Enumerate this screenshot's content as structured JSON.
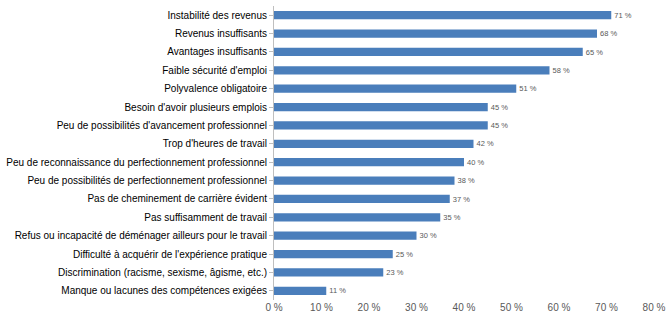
{
  "chart_data": {
    "type": "bar",
    "orientation": "horizontal",
    "categories": [
      "Instabilité des revenus",
      "Revenus insuffisants",
      "Avantages insuffisants",
      "Faible sécurité d'emploi",
      "Polyvalence obligatoire",
      "Besoin d'avoir plusieurs emplois",
      "Peu de possibilités d'avancement professionnel",
      "Trop d'heures de travail",
      "Peu de reconnaissance du perfectionnement professionnel",
      "Peu de possibilités de perfectionnement professionnel",
      "Pas de cheminement de carrière évident",
      "Pas suffisamment de travail",
      "Refus ou incapacité de déménager ailleurs pour le travail",
      "Difficulté à acquérir de l'expérience pratique",
      "Discrimination (racisme, sexisme, âgisme, etc.)",
      "Manque ou lacunes des compétences exigées"
    ],
    "values": [
      71,
      68,
      65,
      58,
      51,
      45,
      45,
      42,
      40,
      38,
      37,
      35,
      30,
      25,
      23,
      11
    ],
    "value_labels": [
      "71 %",
      "68 %",
      "65 %",
      "58 %",
      "51 %",
      "45 %",
      "45 %",
      "42 %",
      "40 %",
      "38 %",
      "37 %",
      "35 %",
      "30 %",
      "25 %",
      "23 %",
      "11 %"
    ],
    "color": "#4a7ebb",
    "xlim": [
      0,
      80
    ],
    "xticks": [
      {
        "value": 0,
        "label": "0 %"
      },
      {
        "value": 10,
        "label": "10 %"
      },
      {
        "value": 20,
        "label": "20 %"
      },
      {
        "value": 30,
        "label": "30 %"
      },
      {
        "value": 40,
        "label": "40 %"
      },
      {
        "value": 50,
        "label": "50 %"
      },
      {
        "value": 60,
        "label": "60 %"
      },
      {
        "value": 70,
        "label": "70 %"
      },
      {
        "value": 80,
        "label": "80 %"
      }
    ],
    "grid": false,
    "data_labels": true
  }
}
